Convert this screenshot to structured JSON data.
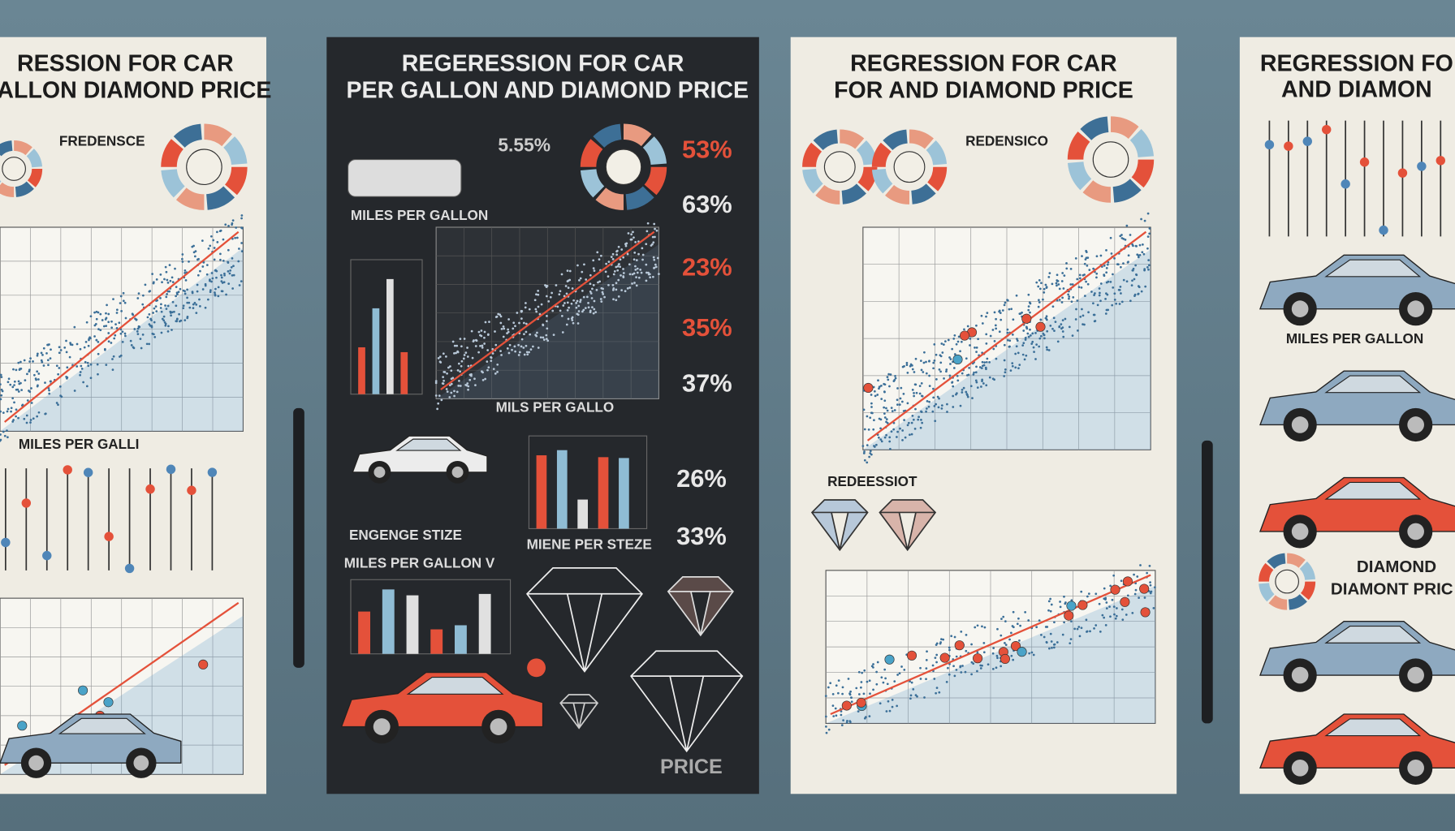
{
  "posters": [
    {
      "title": "RESSION FOR CAR",
      "subtitle": "GALLON DIAMOND PRICE",
      "labels": [
        "FREDENSCE",
        "MILES PER GALLI"
      ]
    },
    {
      "title": "REGERESSION FOR CAR",
      "subtitle": "PER GALLON AND DIAMOND PRICE",
      "labels": [
        "MILES PER GALLON",
        "MILS PER GALLO",
        "ENGENGE STIZE",
        "MIENE PER STEZE",
        "MILES PER GALLON V",
        "PRICE"
      ],
      "stats": [
        "5.55%",
        "53%",
        "63%",
        "23%",
        "35%",
        "37%",
        "26%",
        "33%"
      ]
    },
    {
      "title": "REGRESSION FOR CAR",
      "subtitle": "FOR AND DIAMOND PRICE",
      "labels": [
        "REDENSICO",
        "REDEESSIOT"
      ]
    },
    {
      "title": "REGRESSION FO",
      "subtitle": "AND DIAMON",
      "labels": [
        "MILES PER GALLON",
        "DIAMOND",
        "DIAMONT PRIC"
      ]
    }
  ]
}
